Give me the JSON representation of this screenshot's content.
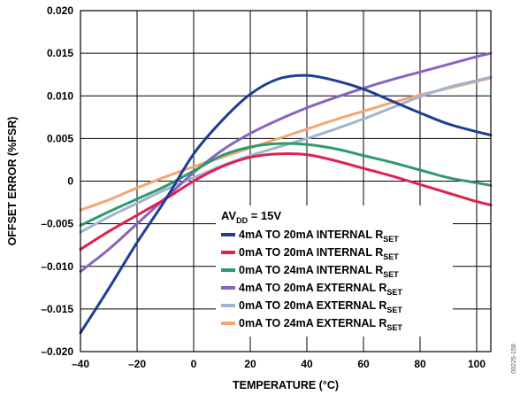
{
  "chart_data": {
    "type": "line",
    "xlabel": "TEMPERATURE (°C)",
    "ylabel": "OFFSET ERROR (%FSR)",
    "xlim": [
      -40,
      105
    ],
    "ylim": [
      -0.02,
      0.02
    ],
    "x_ticks": [
      "–40",
      "–20",
      "0",
      "20",
      "40",
      "60",
      "80",
      "100"
    ],
    "y_ticks": [
      "0.020",
      "0.015",
      "0.010",
      "0.005",
      "0",
      "–0.005",
      "–0.010",
      "–0.015",
      "–0.020"
    ],
    "grid": true,
    "legend_title": {
      "main": "AV",
      "sub": "DD",
      "suffix": " = 15V"
    },
    "figure_id": "09225-158",
    "series": [
      {
        "name": "4mA TO 20mA INTERNAL R",
        "name_sub": "SET",
        "color": "#1c3f94",
        "x": [
          -40,
          -30,
          -20,
          -10,
          0,
          10,
          20,
          30,
          40,
          50,
          60,
          70,
          80,
          90,
          100,
          105
        ],
        "y": [
          -0.0178,
          -0.0126,
          -0.0072,
          -0.0022,
          0.0032,
          0.0071,
          0.0102,
          0.012,
          0.0124,
          0.0118,
          0.0108,
          0.0094,
          0.008,
          0.0067,
          0.0058,
          0.0054
        ]
      },
      {
        "name": "0mA TO 20mA INTERNAL R",
        "name_sub": "SET",
        "color": "#e0204f",
        "x": [
          -40,
          -30,
          -20,
          -10,
          0,
          10,
          20,
          30,
          40,
          50,
          60,
          70,
          80,
          90,
          100,
          105
        ],
        "y": [
          -0.008,
          -0.0059,
          -0.004,
          -0.0021,
          0.0,
          0.0017,
          0.0028,
          0.0032,
          0.0031,
          0.0024,
          0.0015,
          0.0006,
          -0.0004,
          -0.0014,
          -0.0024,
          -0.0028
        ]
      },
      {
        "name": "0mA TO 24mA INTERNAL R",
        "name_sub": "SET",
        "color": "#2e9a6b",
        "x": [
          -40,
          -30,
          -20,
          -10,
          0,
          10,
          20,
          30,
          40,
          50,
          60,
          70,
          80,
          90,
          100,
          105
        ],
        "y": [
          -0.0052,
          -0.0036,
          -0.0021,
          -0.0006,
          0.0012,
          0.003,
          0.004,
          0.0044,
          0.0043,
          0.0038,
          0.003,
          0.0022,
          0.0013,
          0.0004,
          -0.0002,
          -0.0005
        ]
      },
      {
        "name": "4mA TO 20mA EXTERNAL R",
        "name_sub": "SET",
        "color": "#8a63c0",
        "x": [
          -40,
          -30,
          -20,
          -10,
          0,
          10,
          20,
          30,
          40,
          50,
          60,
          70,
          80,
          90,
          100,
          105
        ],
        "y": [
          -0.0106,
          -0.008,
          -0.005,
          -0.002,
          0.001,
          0.0036,
          0.0056,
          0.0072,
          0.0086,
          0.0098,
          0.0109,
          0.0119,
          0.0128,
          0.0137,
          0.0146,
          0.015
        ]
      },
      {
        "name": "0mA TO 20mA EXTERNAL R",
        "name_sub": "SET",
        "color": "#9fb4cf",
        "x": [
          -40,
          -30,
          -20,
          -10,
          0,
          10,
          20,
          30,
          40,
          50,
          60,
          70,
          80,
          90,
          100,
          105
        ],
        "y": [
          -0.006,
          -0.0042,
          -0.0026,
          -0.001,
          0.0004,
          0.0018,
          0.003,
          0.004,
          0.005,
          0.0061,
          0.0073,
          0.0086,
          0.0099,
          0.011,
          0.0118,
          0.0122
        ]
      },
      {
        "name": "0mA TO 24mA EXTERNAL R",
        "name_sub": "SET",
        "color": "#f4a574",
        "x": [
          -40,
          -30,
          -20,
          -10,
          0,
          10,
          20,
          30,
          40,
          50,
          60,
          70,
          80,
          90,
          100,
          105
        ],
        "y": [
          -0.0034,
          -0.0022,
          -0.0008,
          0.0005,
          0.0017,
          0.0028,
          0.0039,
          0.005,
          0.0061,
          0.0072,
          0.0082,
          0.0092,
          0.0101,
          0.0109,
          0.0117,
          0.0121
        ]
      }
    ]
  }
}
